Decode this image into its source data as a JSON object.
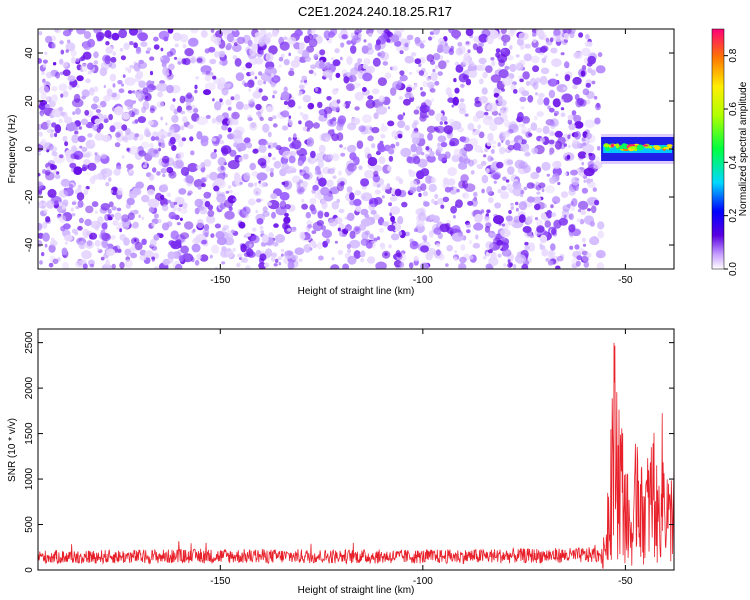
{
  "title": "C2E1.2024.240.18.25.R17",
  "chart_data": [
    {
      "type": "heatmap",
      "xlabel": "Height of straight line (km)",
      "ylabel": "Frequency (Hz)",
      "xlim": [
        -195,
        -38
      ],
      "ylim": [
        -50,
        50
      ],
      "xticks": [
        -150,
        -100,
        -50
      ],
      "yticks": [
        -40,
        -20,
        0,
        20,
        40
      ],
      "colorbar": {
        "label": "Normalized spectral amplitude",
        "range": [
          0,
          0.9
        ],
        "ticks": [
          0.0,
          0.2,
          0.4,
          0.6,
          0.8
        ]
      },
      "regions": [
        {
          "x_range": [
            -195,
            -56
          ],
          "freq_range": [
            -50,
            50
          ],
          "amplitude": 0.1
        },
        {
          "x_range": [
            -56,
            -38
          ],
          "freq_range": [
            -5,
            5
          ],
          "amplitude": 0.6
        }
      ],
      "grid": false
    },
    {
      "type": "line",
      "xlabel": "Height of straight line (km)",
      "ylabel": "SNR (10 * v/v)",
      "xlim": [
        -195,
        -38
      ],
      "ylim": [
        0,
        2650
      ],
      "xticks": [
        -150,
        -100,
        -50
      ],
      "yticks": [
        0,
        500,
        1000,
        1500,
        2000,
        2500
      ],
      "color": "#e8202a",
      "series": [
        {
          "x": [
            -195,
            -150,
            -100,
            -60,
            -56,
            -55,
            -54,
            -53,
            -51,
            -50,
            -48,
            -47,
            -46,
            -44,
            -43,
            -42,
            -41,
            -40,
            -39,
            -38
          ],
          "values": [
            150,
            160,
            155,
            170,
            180,
            450,
            1400,
            2650,
            1750,
            1200,
            600,
            2150,
            1100,
            1300,
            1650,
            900,
            1700,
            1350,
            900,
            1550
          ]
        }
      ],
      "grid": false
    }
  ]
}
